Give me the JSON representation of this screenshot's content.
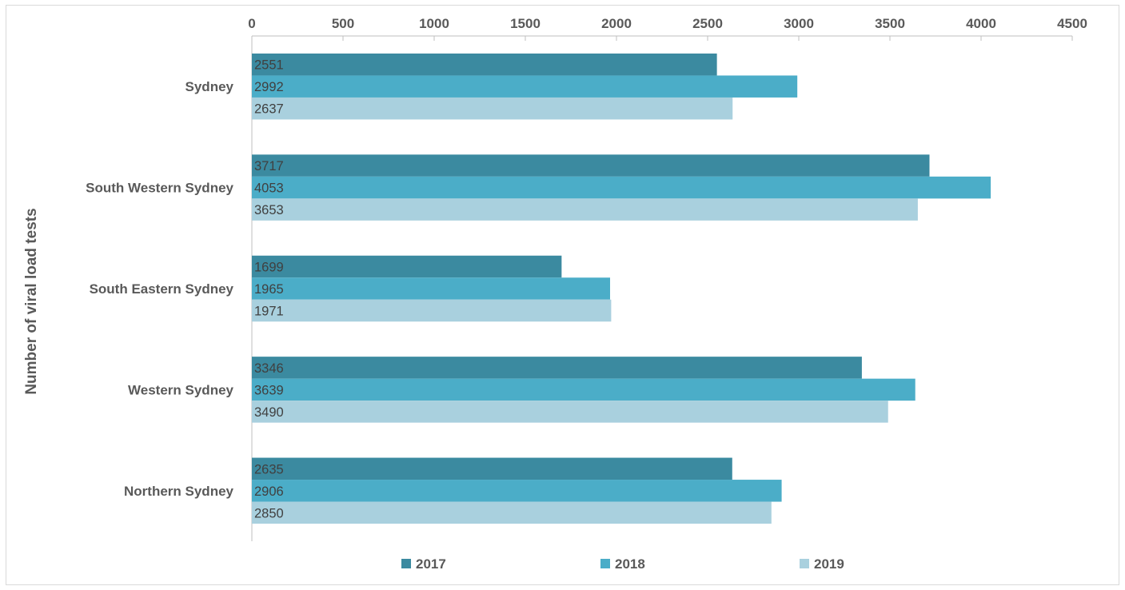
{
  "chart_data": {
    "type": "bar",
    "orientation": "horizontal",
    "title": "",
    "xlabel": "",
    "ylabel": "Number of viral load tests",
    "xlim": [
      0,
      4500
    ],
    "xticks": [
      0,
      500,
      1000,
      1500,
      2000,
      2500,
      3000,
      3500,
      4000,
      4500
    ],
    "x_axis_position": "top",
    "grid": false,
    "legend_position": "bottom",
    "categories": [
      "Sydney",
      "South Western Sydney",
      "South Eastern Sydney",
      "Western  Sydney",
      "Northern Sydney"
    ],
    "series": [
      {
        "name": "2017",
        "color": "#3b8aa0",
        "values": [
          2551,
          3717,
          1699,
          3346,
          2635
        ]
      },
      {
        "name": "2018",
        "color": "#4badc8",
        "values": [
          2992,
          4053,
          1965,
          3639,
          2906
        ]
      },
      {
        "name": "2019",
        "color": "#a9d0de",
        "values": [
          2637,
          3653,
          1971,
          3490,
          2850
        ]
      }
    ]
  }
}
